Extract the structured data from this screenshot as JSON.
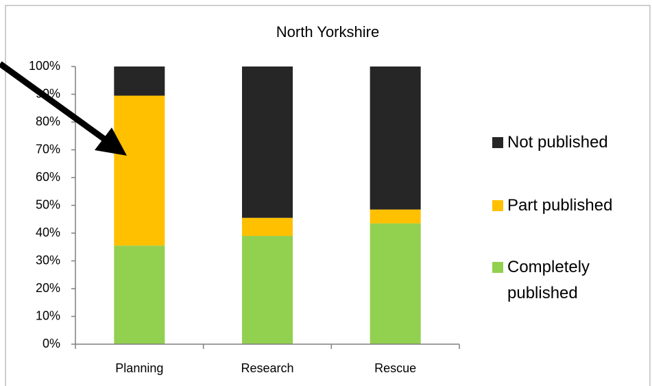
{
  "chart_data": {
    "type": "stacked_bar",
    "title": "North Yorkshire",
    "categories": [
      "Planning",
      "Research",
      "Rescue"
    ],
    "series": [
      {
        "name": "Completely published",
        "color": "#92d050",
        "values": [
          35.5,
          39,
          43.5
        ]
      },
      {
        "name": "Part published",
        "color": "#ffc000",
        "values": [
          54,
          6.5,
          5
        ]
      },
      {
        "name": "Not published",
        "color": "#262626",
        "values": [
          10.5,
          54.5,
          51.5
        ]
      }
    ],
    "ylim": [
      0,
      100
    ],
    "yticks": [
      {
        "value": 0,
        "label": "0%"
      },
      {
        "value": 10,
        "label": "10%"
      },
      {
        "value": 20,
        "label": "20%"
      },
      {
        "value": 30,
        "label": "30%"
      },
      {
        "value": 40,
        "label": "40%"
      },
      {
        "value": 50,
        "label": "50%"
      },
      {
        "value": 60,
        "label": "60%"
      },
      {
        "value": 70,
        "label": "70%"
      },
      {
        "value": 80,
        "label": "80%"
      },
      {
        "value": 90,
        "label": "90%"
      },
      {
        "value": 100,
        "label": "100%"
      }
    ],
    "legend": "right"
  }
}
